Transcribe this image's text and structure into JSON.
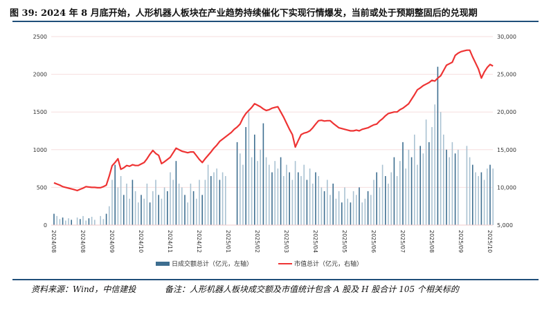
{
  "title": "图 39: 2024 年 8 月底开始，人形机器人板块在产业趋势持续催化下实现行情爆发，当前或处于预期整固后的兑现期",
  "source": "资料来源：Wind，中信建投",
  "note": "备注：人形机器人板块成交额及市值统计包含 A 股及 H 股合计 105 个相关标的",
  "colors": {
    "bar_dark": "#3d6e90",
    "bar_light": "#a9c2d2",
    "line": "#ee3333",
    "rule": "#1f4e79"
  },
  "chart_data": {
    "type": "bar+line",
    "x_tick_labels": [
      "2024/08",
      "2024/08",
      "2024/09",
      "2024/10",
      "2024/11",
      "2024/12",
      "2025/01",
      "2025/02",
      "2025/03",
      "2025/04",
      "2025/05",
      "2025/06",
      "2025/07",
      "2025/08",
      "2025/09",
      "2025/10"
    ],
    "left_axis": {
      "ylim": [
        0,
        2500
      ],
      "ticks": [
        "0",
        "500",
        "1000",
        "1500",
        "2000",
        "2500"
      ]
    },
    "right_axis": {
      "ylim": [
        5000,
        30000
      ],
      "ticks": [
        "5,000",
        "10,000",
        "15,000",
        "20,000",
        "25,000",
        "30,000"
      ]
    },
    "grid": true,
    "legend_position": "bottom",
    "series": [
      {
        "name": "日成交额总计（亿元，左轴）",
        "type": "bar",
        "axis": "left",
        "values": [
          150,
          120,
          80,
          100,
          60,
          90,
          70,
          null,
          100,
          80,
          120,
          60,
          90,
          110,
          70,
          null,
          120,
          80,
          150,
          250,
          600,
          800,
          500,
          650,
          400,
          550,
          350,
          600,
          450,
          300,
          400,
          350,
          550,
          300,
          450,
          600,
          400,
          350,
          500,
          450,
          700,
          600,
          850,
          550,
          500,
          400,
          300,
          550,
          450,
          350,
          600,
          400,
          600,
          800,
          650,
          700,
          750,
          600,
          700,
          650,
          null,
          null,
          null,
          1100,
          950,
          800,
          1300,
          1500,
          900,
          1200,
          850,
          1000,
          1350,
          900,
          800,
          700,
          850,
          750,
          900,
          650,
          800,
          700,
          600,
          850,
          700,
          650,
          800,
          600,
          750,
          550,
          700,
          650,
          500,
          450,
          600,
          400,
          550,
          350,
          450,
          300,
          500,
          350,
          300,
          450,
          400,
          500,
          300,
          350,
          450,
          400,
          600,
          700,
          500,
          800,
          650,
          550,
          700,
          900,
          650,
          850,
          1100,
          750,
          1000,
          900,
          1200,
          800,
          1050,
          950,
          1400,
          1100,
          1300,
          1600,
          2100,
          1500,
          1200,
          1000,
          900,
          1100,
          950,
          1000,
          null,
          null,
          1050,
          900,
          800,
          700,
          650,
          700,
          600,
          750,
          800,
          750
        ]
      },
      {
        "name": "市值总计（亿元，右轴）",
        "type": "line",
        "axis": "right",
        "values": [
          10600,
          10450,
          10300,
          10100,
          10000,
          9900,
          9800,
          9700,
          9580,
          9750,
          9900,
          10100,
          10050,
          10000,
          10000,
          9950,
          9950,
          10100,
          10300,
          11500,
          12880,
          13300,
          13800,
          12400,
          12600,
          12900,
          12800,
          13000,
          12900,
          12900,
          13100,
          13300,
          13800,
          14400,
          14900,
          14500,
          14250,
          13150,
          13400,
          13700,
          14000,
          14600,
          15200,
          15000,
          14800,
          14700,
          14600,
          14700,
          14700,
          14200,
          13700,
          13300,
          13800,
          14250,
          14700,
          15200,
          15600,
          16100,
          16400,
          16700,
          17000,
          17300,
          17700,
          18000,
          18400,
          19200,
          19800,
          20200,
          20600,
          21100,
          20900,
          20700,
          20400,
          20200,
          20300,
          20500,
          20600,
          20700,
          20000,
          19300,
          18500,
          17700,
          17000,
          15350,
          16200,
          17000,
          17200,
          17300,
          17500,
          17900,
          18400,
          18850,
          18900,
          18800,
          18850,
          18850,
          18500,
          18200,
          17900,
          17800,
          17700,
          17600,
          17500,
          17500,
          17600,
          17500,
          17700,
          17800,
          17900,
          18100,
          18300,
          18400,
          18800,
          19100,
          19500,
          19800,
          19900,
          20000,
          20000,
          20300,
          20500,
          20800,
          21100,
          21700,
          22300,
          22950,
          23200,
          23500,
          23700,
          23900,
          24200,
          24100,
          24500,
          24800,
          25500,
          26200,
          26400,
          26600,
          27500,
          27800,
          28000,
          28100,
          28200,
          28200,
          27300,
          26500,
          25700,
          24500,
          25300,
          25900,
          26300,
          26100
        ]
      }
    ]
  }
}
